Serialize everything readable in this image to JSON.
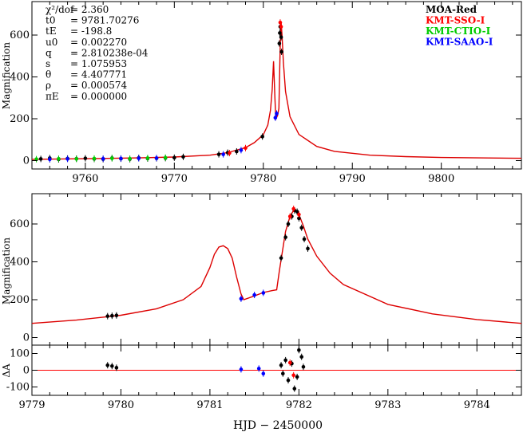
{
  "chart_data": [
    {
      "type": "line",
      "panel": "top",
      "ylabel": "Magnification",
      "xlim": [
        9754,
        9809
      ],
      "ylim": [
        -40,
        760
      ],
      "xticks": [
        9760,
        9770,
        9780,
        9790,
        9800
      ],
      "yticks": [
        0,
        200,
        400,
        600
      ],
      "parameters": [
        {
          "name": "χ²/dof",
          "value": "= 2.360"
        },
        {
          "name": "t0",
          "value": "= 9781.70276"
        },
        {
          "name": "tE",
          "value": "= -198.8"
        },
        {
          "name": "u0",
          "value": "= 0.002270"
        },
        {
          "name": "q",
          "value": "= 2.810238e-04"
        },
        {
          "name": "s",
          "value": "= 1.075953"
        },
        {
          "name": "θ",
          "value": "= 4.407771"
        },
        {
          "name": "ρ",
          "value": "= 0.000574"
        },
        {
          "name": "πE",
          "value": "= 0.000000"
        }
      ],
      "legend_position": "top-right",
      "legend": [
        {
          "name": "MOA-Red",
          "color": "#000000"
        },
        {
          "name": "KMT-SSO-I",
          "color": "#ff0000"
        },
        {
          "name": "KMT-CTIO-I",
          "color": "#00cc00"
        },
        {
          "name": "KMT-SAAO-I",
          "color": "#0000ff"
        }
      ],
      "model_curve": {
        "color": "#dd0000",
        "x": [
          9754,
          9760,
          9766,
          9770,
          9774,
          9776,
          9778,
          9779,
          9780,
          9780.5,
          9780.8,
          9781,
          9781.15,
          9781.3,
          9781.4,
          9781.6,
          9781.75,
          9781.9,
          9782,
          9782.1,
          9782.25,
          9782.5,
          9783,
          9784,
          9786,
          9788,
          9792,
          9796,
          9800,
          9809
        ],
        "y": [
          6,
          9,
          13,
          17,
          26,
          38,
          62,
          86,
          124,
          170,
          240,
          340,
          475,
          300,
          200,
          215,
          250,
          560,
          660,
          600,
          470,
          330,
          210,
          125,
          68,
          44,
          26,
          19,
          15,
          11
        ]
      },
      "points": [
        {
          "series": "MOA-Red",
          "x": [
            9755,
            9756,
            9757,
            9758,
            9759,
            9760,
            9761,
            9762,
            9763,
            9764,
            9765,
            9766,
            9767,
            9768,
            9769,
            9770,
            9771,
            9775,
            9776,
            9777,
            9779.9,
            9781.8,
            9781.85,
            9781.9,
            9782,
            9782.05
          ],
          "y": [
            8,
            12,
            6,
            10,
            9,
            11,
            8,
            7,
            12,
            9,
            7,
            13,
            10,
            11,
            12,
            14,
            18,
            30,
            38,
            44,
            115,
            560,
            610,
            640,
            590,
            520
          ]
        },
        {
          "series": "KMT-SSO-I",
          "x": [
            9776.2,
            9778,
            9781.9,
            9782.0
          ],
          "y": [
            36,
            60,
            660,
            640
          ]
        },
        {
          "series": "KMT-CTIO-I",
          "x": [
            9754.5,
            9757,
            9759,
            9761,
            9763,
            9765,
            9767,
            9769
          ],
          "y": [
            7,
            9,
            8,
            10,
            11,
            9,
            12,
            14
          ]
        },
        {
          "series": "KMT-SAAO-I",
          "x": [
            9756,
            9758,
            9762,
            9764,
            9766,
            9768,
            9775.5,
            9777.5,
            9781.35,
            9781.5
          ],
          "y": [
            6,
            8,
            9,
            10,
            11,
            12,
            30,
            50,
            205,
            225
          ]
        }
      ]
    },
    {
      "type": "line",
      "panel": "middle",
      "ylabel": "Magnification",
      "xlim": [
        9779,
        9784.5
      ],
      "ylim": [
        -40,
        760
      ],
      "yticks": [
        0,
        200,
        400,
        600
      ],
      "model_curve": {
        "color": "#dd0000",
        "x": [
          9779,
          9779.5,
          9780,
          9780.4,
          9780.7,
          9780.9,
          9781.0,
          9781.05,
          9781.1,
          9781.15,
          9781.2,
          9781.25,
          9781.3,
          9781.35,
          9781.38,
          9781.5,
          9781.6,
          9781.7,
          9781.75,
          9781.78,
          9781.85,
          9781.9,
          9781.95,
          9782.0,
          9782.05,
          9782.1,
          9782.2,
          9782.35,
          9782.5,
          9783,
          9783.5,
          9784,
          9784.5
        ],
        "y": [
          75,
          92,
          118,
          152,
          200,
          270,
          370,
          440,
          478,
          485,
          470,
          420,
          320,
          230,
          200,
          220,
          238,
          248,
          252,
          350,
          560,
          640,
          680,
          650,
          590,
          520,
          430,
          340,
          280,
          175,
          125,
          95,
          75
        ]
      },
      "points": [
        {
          "series": "MOA-Red",
          "x": [
            9779.85,
            9779.9,
            9779.95,
            9781.8,
            9781.85,
            9781.88,
            9781.92,
            9781.95,
            9781.98,
            9782.0,
            9782.03,
            9782.06,
            9782.1
          ],
          "y": [
            113,
            115,
            117,
            420,
            530,
            600,
            640,
            672,
            665,
            630,
            580,
            520,
            470
          ]
        },
        {
          "series": "KMT-SSO-I",
          "x": [
            9781.9,
            9781.94,
            9782.0
          ],
          "y": [
            640,
            680,
            650
          ]
        },
        {
          "series": "KMT-SAAO-I",
          "x": [
            9781.35,
            9781.5,
            9781.6
          ],
          "y": [
            205,
            225,
            236
          ]
        }
      ]
    },
    {
      "type": "scatter",
      "panel": "residuals",
      "ylabel": "ΔA",
      "xlabel": "HJD − 2450000",
      "xlim": [
        9779,
        9784.5
      ],
      "ylim": [
        -150,
        150
      ],
      "xticks": [
        9779,
        9780,
        9781,
        9782,
        9783,
        9784
      ],
      "yticks": [
        -100,
        0,
        100
      ],
      "residual_line": {
        "y": 0,
        "color": "#ff0000"
      },
      "points": [
        {
          "series": "MOA-Red",
          "x": [
            9779.85,
            9779.9,
            9779.95,
            9781.8,
            9781.82,
            9781.85,
            9781.88,
            9781.92,
            9781.95,
            9781.98,
            9782.0,
            9782.03,
            9782.05
          ],
          "y": [
            30,
            25,
            15,
            30,
            -20,
            60,
            -60,
            40,
            -110,
            -40,
            120,
            80,
            20
          ]
        },
        {
          "series": "KMT-SSO-I",
          "x": [
            9781.9,
            9781.94
          ],
          "y": [
            45,
            -30
          ]
        },
        {
          "series": "KMT-SAAO-I",
          "x": [
            9781.35,
            9781.55,
            9781.6
          ],
          "y": [
            5,
            10,
            -20
          ]
        }
      ]
    }
  ]
}
